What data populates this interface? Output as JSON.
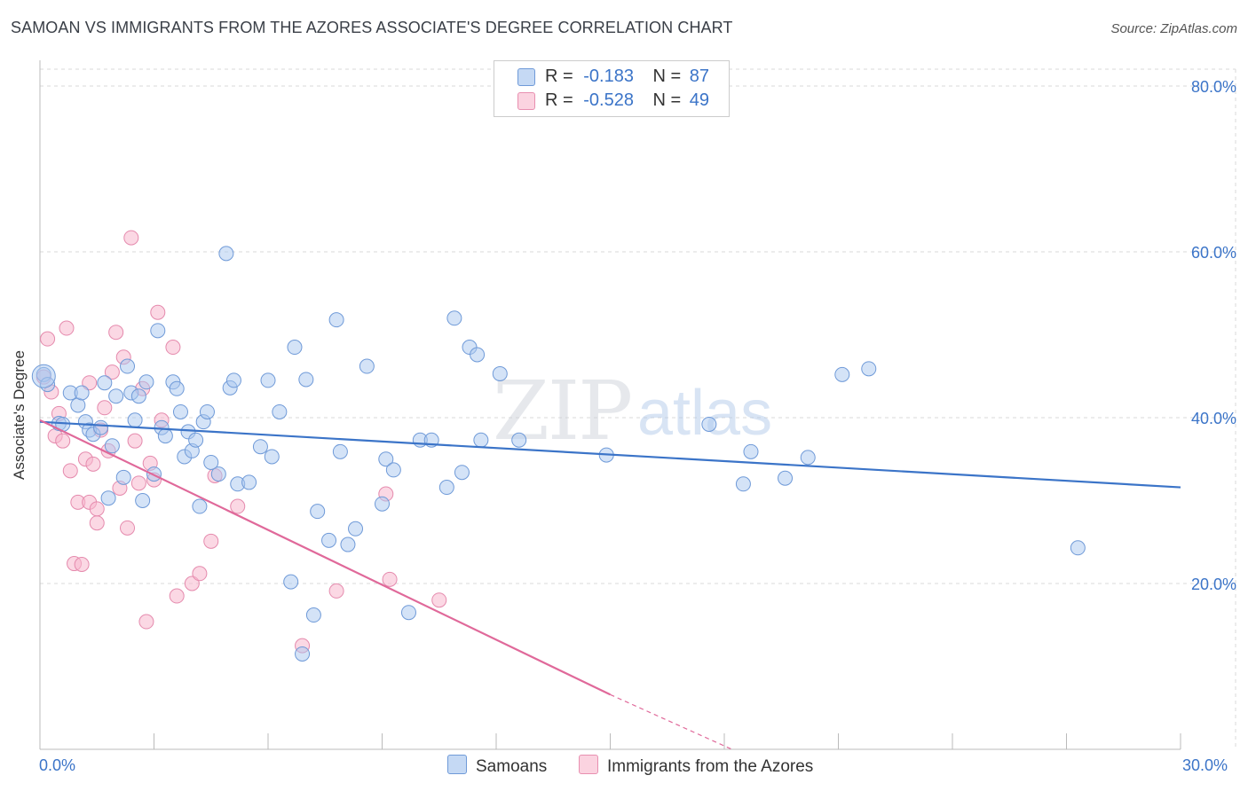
{
  "title": "SAMOAN VS IMMIGRANTS FROM THE AZORES ASSOCIATE'S DEGREE CORRELATION CHART",
  "source": "Source: ZipAtlas.com",
  "legend": {
    "rows": [
      {
        "r_label": "R =",
        "r_value": "-0.183",
        "n_label": "N =",
        "n_value": "87"
      },
      {
        "r_label": "R =",
        "r_value": "-0.528",
        "n_label": "N =",
        "n_value": "49"
      }
    ]
  },
  "bottom_legend": {
    "series1": "Samoans",
    "series2": "Immigrants from the Azores"
  },
  "axes": {
    "ylabel": "Associate's Degree",
    "x_min_label": "0.0%",
    "x_max_label": "30.0%",
    "y_ticks": [
      "80.0%",
      "60.0%",
      "40.0%",
      "20.0%"
    ]
  },
  "colors": {
    "blue": "#3b74c8",
    "blue_fill": "#aac8f0",
    "pink": "#e0699a",
    "pink_fill": "#f7b8ce",
    "grid": "#d9d9d9"
  },
  "chart_data": {
    "type": "scatter",
    "title": "SAMOAN VS IMMIGRANTS FROM THE AZORES ASSOCIATE'S DEGREE CORRELATION CHART",
    "xlabel": "",
    "ylabel": "Associate's Degree",
    "xlim": [
      0,
      30
    ],
    "ylim": [
      0,
      80
    ],
    "grid": true,
    "legend_position": "top-center",
    "series": [
      {
        "name": "Samoans",
        "color": "#3b74c8",
        "R": -0.183,
        "N": 87,
        "trend": {
          "x": [
            0,
            30
          ],
          "y": [
            39.5,
            31.6
          ]
        },
        "points": [
          [
            0.1,
            45.2
          ],
          [
            0.2,
            44.0
          ],
          [
            0.5,
            39.3
          ],
          [
            0.6,
            39.2
          ],
          [
            0.8,
            43.0
          ],
          [
            1.0,
            41.5
          ],
          [
            1.1,
            43.0
          ],
          [
            1.2,
            39.5
          ],
          [
            1.3,
            38.5
          ],
          [
            1.4,
            38.0
          ],
          [
            1.6,
            38.8
          ],
          [
            1.7,
            44.2
          ],
          [
            1.8,
            30.3
          ],
          [
            1.9,
            36.6
          ],
          [
            2.0,
            42.6
          ],
          [
            2.2,
            32.8
          ],
          [
            2.3,
            46.2
          ],
          [
            2.4,
            43.0
          ],
          [
            2.5,
            39.7
          ],
          [
            2.6,
            42.6
          ],
          [
            2.7,
            30.0
          ],
          [
            2.8,
            44.3
          ],
          [
            3.0,
            33.2
          ],
          [
            3.1,
            50.5
          ],
          [
            3.2,
            38.8
          ],
          [
            3.3,
            37.8
          ],
          [
            3.5,
            44.3
          ],
          [
            3.6,
            43.5
          ],
          [
            3.7,
            40.7
          ],
          [
            3.8,
            35.3
          ],
          [
            3.9,
            38.3
          ],
          [
            4.0,
            36.0
          ],
          [
            4.1,
            37.3
          ],
          [
            4.2,
            29.3
          ],
          [
            4.3,
            39.5
          ],
          [
            4.4,
            40.7
          ],
          [
            4.5,
            34.6
          ],
          [
            4.7,
            33.2
          ],
          [
            4.9,
            59.8
          ],
          [
            5.0,
            43.6
          ],
          [
            5.1,
            44.5
          ],
          [
            5.2,
            32.0
          ],
          [
            5.5,
            32.2
          ],
          [
            5.8,
            36.5
          ],
          [
            6.0,
            44.5
          ],
          [
            6.1,
            35.3
          ],
          [
            6.3,
            40.7
          ],
          [
            6.6,
            20.2
          ],
          [
            6.7,
            48.5
          ],
          [
            6.9,
            11.5
          ],
          [
            7.0,
            44.6
          ],
          [
            7.2,
            16.2
          ],
          [
            7.3,
            28.7
          ],
          [
            7.6,
            25.2
          ],
          [
            7.8,
            51.8
          ],
          [
            7.9,
            35.9
          ],
          [
            8.1,
            24.7
          ],
          [
            8.3,
            26.6
          ],
          [
            8.6,
            46.2
          ],
          [
            9.0,
            29.6
          ],
          [
            9.1,
            35.0
          ],
          [
            9.3,
            33.7
          ],
          [
            9.7,
            16.5
          ],
          [
            10.0,
            37.3
          ],
          [
            10.3,
            37.3
          ],
          [
            10.7,
            31.6
          ],
          [
            10.9,
            52.0
          ],
          [
            11.1,
            33.4
          ],
          [
            11.3,
            48.5
          ],
          [
            11.5,
            47.6
          ],
          [
            11.6,
            37.3
          ],
          [
            12.1,
            45.3
          ],
          [
            12.6,
            37.3
          ],
          [
            14.9,
            35.5
          ],
          [
            17.6,
            39.2
          ],
          [
            18.5,
            32.0
          ],
          [
            18.7,
            35.9
          ],
          [
            19.6,
            32.7
          ],
          [
            20.2,
            35.2
          ],
          [
            21.1,
            45.2
          ],
          [
            21.8,
            45.9
          ],
          [
            27.3,
            24.3
          ]
        ]
      },
      {
        "name": "Immigrants from the Azores",
        "color": "#e0699a",
        "R": -0.528,
        "N": 49,
        "trend": {
          "x": [
            0,
            15.0
          ],
          "y": [
            39.7,
            6.6
          ]
        },
        "trend_dashed": {
          "x": [
            15.0,
            18.2
          ],
          "y": [
            6.6,
            0
          ]
        },
        "points": [
          [
            0.1,
            44.9
          ],
          [
            0.2,
            49.5
          ],
          [
            0.3,
            43.1
          ],
          [
            0.4,
            37.8
          ],
          [
            0.5,
            40.5
          ],
          [
            0.6,
            37.2
          ],
          [
            0.7,
            50.8
          ],
          [
            0.8,
            33.6
          ],
          [
            0.9,
            22.4
          ],
          [
            1.0,
            29.8
          ],
          [
            1.1,
            22.3
          ],
          [
            1.2,
            35.0
          ],
          [
            1.3,
            44.2
          ],
          [
            1.3,
            29.8
          ],
          [
            1.4,
            34.4
          ],
          [
            1.5,
            27.3
          ],
          [
            1.5,
            29.0
          ],
          [
            1.6,
            38.5
          ],
          [
            1.7,
            41.2
          ],
          [
            1.8,
            36.0
          ],
          [
            1.9,
            45.5
          ],
          [
            2.0,
            50.3
          ],
          [
            2.1,
            31.5
          ],
          [
            2.2,
            47.3
          ],
          [
            2.3,
            26.7
          ],
          [
            2.4,
            61.7
          ],
          [
            2.5,
            37.2
          ],
          [
            2.6,
            32.1
          ],
          [
            2.7,
            43.5
          ],
          [
            2.8,
            15.4
          ],
          [
            2.9,
            34.5
          ],
          [
            3.0,
            32.5
          ],
          [
            3.1,
            52.7
          ],
          [
            3.2,
            39.7
          ],
          [
            3.5,
            48.5
          ],
          [
            3.6,
            18.5
          ],
          [
            4.0,
            20.0
          ],
          [
            4.2,
            21.2
          ],
          [
            4.5,
            25.1
          ],
          [
            4.6,
            33.0
          ],
          [
            5.2,
            29.3
          ],
          [
            6.9,
            12.5
          ],
          [
            7.8,
            19.1
          ],
          [
            9.1,
            30.8
          ],
          [
            9.2,
            20.5
          ],
          [
            10.5,
            18.0
          ]
        ]
      }
    ]
  }
}
